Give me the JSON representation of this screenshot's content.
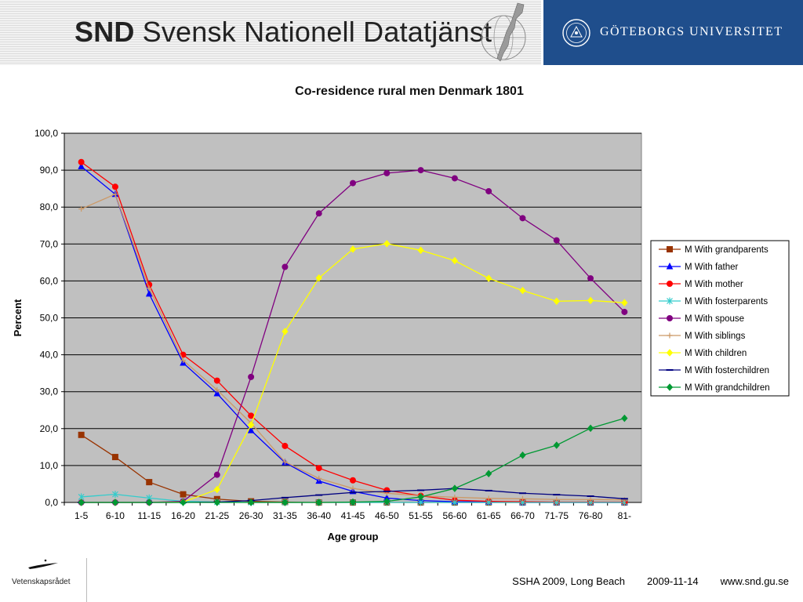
{
  "header": {
    "snd_abbr": "SND",
    "snd_name": "Svensk Nationell Datatjänst",
    "gu_name": "GÖTEBORGS UNIVERSITET"
  },
  "footer": {
    "logo_text": "Vetenskapsrådet",
    "conference": "SSHA 2009, Long Beach",
    "date": "2009-11-14",
    "website": "www.snd.gu.se"
  },
  "chart_data": {
    "type": "line",
    "title": "Co-residence rural men Denmark 1801",
    "xlabel": "Age group",
    "ylabel": "Percent",
    "ylim": [
      0,
      100
    ],
    "yticks": [
      "0,0",
      "10,0",
      "20,0",
      "30,0",
      "40,0",
      "50,0",
      "60,0",
      "70,0",
      "80,0",
      "90,0",
      "100,0"
    ],
    "categories": [
      "1-5",
      "6-10",
      "11-15",
      "16-20",
      "21-25",
      "26-30",
      "31-35",
      "36-40",
      "41-45",
      "46-50",
      "51-55",
      "56-60",
      "61-65",
      "66-70",
      "71-75",
      "76-80",
      "81-"
    ],
    "grid": true,
    "legend_position": "right",
    "plot_background": "#c0c0c0",
    "series": [
      {
        "name": "M With grandparents",
        "color": "#993300",
        "marker": "square",
        "values": [
          18.3,
          12.3,
          5.5,
          2.2,
          0.9,
          0.3,
          0.1,
          0.0,
          0.0,
          0.0,
          0.0,
          0.0,
          0.0,
          0.0,
          0.0,
          0.0,
          0.0
        ]
      },
      {
        "name": "M With father",
        "color": "#0000ff",
        "marker": "triangle",
        "values": [
          91.0,
          83.5,
          56.5,
          37.8,
          29.5,
          19.5,
          10.8,
          5.8,
          3.0,
          1.2,
          0.5,
          0.2,
          0.1,
          0.0,
          0.0,
          0.0,
          0.0
        ]
      },
      {
        "name": "M With mother",
        "color": "#ff0000",
        "marker": "circle",
        "values": [
          92.2,
          85.5,
          59.0,
          40.0,
          33.0,
          23.5,
          15.3,
          9.3,
          6.0,
          3.3,
          1.8,
          0.6,
          0.3,
          0.2,
          0.1,
          0.1,
          0.1
        ]
      },
      {
        "name": "M With fosterparents",
        "color": "#33cccc",
        "marker": "asterisk",
        "values": [
          1.5,
          2.2,
          1.2,
          0.3,
          0.1,
          0.0,
          0.0,
          0.0,
          0.0,
          0.0,
          0.0,
          0.0,
          0.0,
          0.0,
          0.0,
          0.0,
          0.0
        ]
      },
      {
        "name": "M With spouse",
        "color": "#800080",
        "marker": "circle",
        "values": [
          0.0,
          0.0,
          0.0,
          0.3,
          7.5,
          34.0,
          63.8,
          78.3,
          86.5,
          89.2,
          90.0,
          87.8,
          84.3,
          77.0,
          71.0,
          60.7,
          51.6
        ]
      },
      {
        "name": "M With siblings",
        "color": "#cc9966",
        "marker": "plus",
        "values": [
          79.5,
          83.5,
          58.0,
          38.5,
          30.5,
          21.5,
          11.0,
          6.5,
          3.8,
          2.5,
          1.8,
          1.4,
          1.1,
          1.0,
          0.8,
          0.8,
          0.7
        ]
      },
      {
        "name": "M With children",
        "color": "#ffff00",
        "marker": "diamond",
        "values": [
          0.0,
          0.0,
          0.0,
          0.1,
          3.5,
          21.0,
          46.3,
          60.8,
          68.6,
          70.1,
          68.3,
          65.5,
          60.7,
          57.4,
          54.5,
          54.7,
          54.1
        ]
      },
      {
        "name": "M With fosterchildren",
        "color": "#000080",
        "marker": "dash",
        "values": [
          0.0,
          0.0,
          0.0,
          0.0,
          0.1,
          0.5,
          1.3,
          2.0,
          2.7,
          3.0,
          3.3,
          3.8,
          3.2,
          2.5,
          2.1,
          1.7,
          1.0
        ]
      },
      {
        "name": "M With grandchildren",
        "color": "#009933",
        "marker": "diamond",
        "values": [
          0.0,
          0.0,
          0.0,
          0.0,
          0.0,
          0.0,
          0.0,
          0.0,
          0.1,
          0.3,
          1.5,
          3.8,
          7.8,
          12.8,
          15.5,
          20.1,
          22.8
        ]
      }
    ]
  }
}
